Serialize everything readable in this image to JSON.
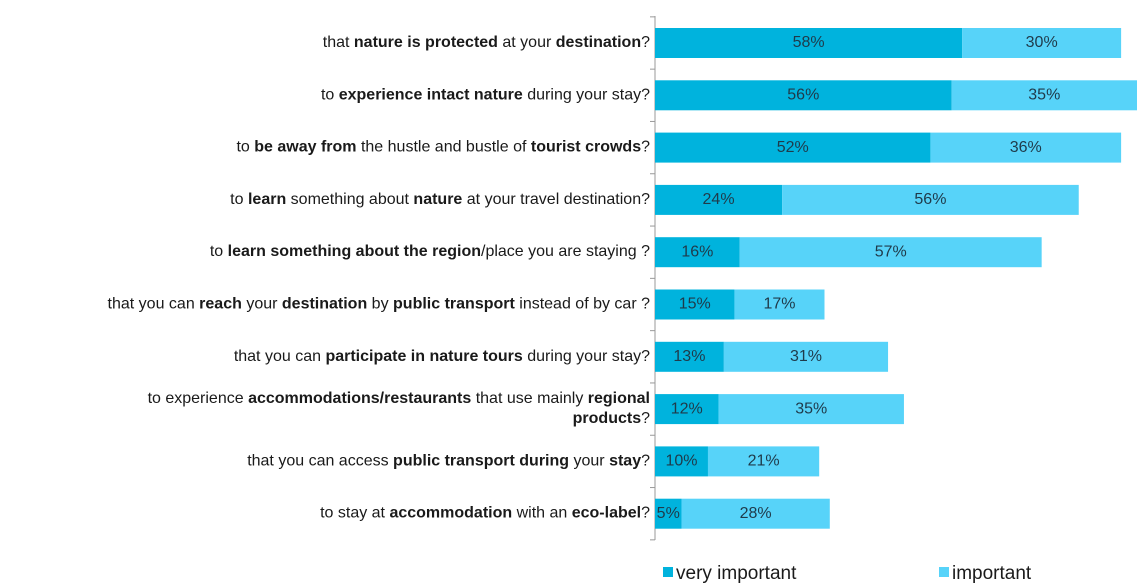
{
  "chart_data": {
    "type": "stacked_bar_horizontal",
    "categories": [
      [
        [
          "that ",
          "nature is protected",
          " at your ",
          "destination",
          "?"
        ]
      ],
      [
        [
          "to ",
          "experience intact nature",
          " during your stay?"
        ]
      ],
      [
        [
          "to ",
          "be away from",
          " the hustle and bustle of ",
          "tourist crowds",
          "?"
        ]
      ],
      [
        [
          "to ",
          "learn",
          " something about ",
          "nature",
          " at your travel destination?"
        ]
      ],
      [
        [
          "to ",
          "learn something about the region",
          "/place you are staying ?"
        ]
      ],
      [
        [
          "that you can ",
          "reach",
          " your ",
          "destination",
          " by ",
          "public transport",
          " instead of by car ?"
        ]
      ],
      [
        [
          "that you can ",
          "participate in nature tours",
          " during your stay?"
        ]
      ],
      [
        [
          "to experience ",
          "accommodations/restaurants",
          " that use mainly ",
          "regional"
        ],
        [
          "",
          "products",
          "?"
        ]
      ],
      [
        [
          "that you can access ",
          "public transport during",
          " your ",
          "stay",
          "?"
        ]
      ],
      [
        [
          "to stay at ",
          "accommodation",
          " with an ",
          "eco-label",
          "?"
        ]
      ]
    ],
    "series": [
      {
        "name": "very important",
        "color": "#00b3dd",
        "values": [
          58,
          56,
          52,
          24,
          16,
          15,
          13,
          12,
          10,
          5
        ],
        "value_labels": [
          "58%",
          "56%",
          "52%",
          "24%",
          "16%",
          "15%",
          "13%",
          "12%",
          "10%",
          "5%"
        ]
      },
      {
        "name": "important",
        "color": "#57d3f9",
        "values": [
          30,
          35,
          36,
          56,
          57,
          17,
          31,
          35,
          21,
          28
        ],
        "value_labels": [
          "30%",
          "35%",
          "36%",
          "56%",
          "57%",
          "17%",
          "31%",
          "35%",
          "21%",
          "28%"
        ]
      }
    ],
    "xlim": [
      0,
      91
    ]
  }
}
